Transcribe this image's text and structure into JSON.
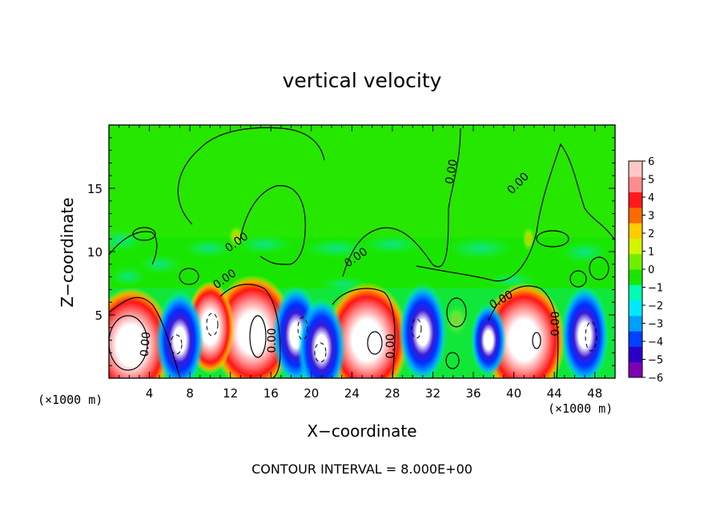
{
  "chart_data": {
    "type": "heatmap",
    "title": "vertical velocity",
    "xlabel": "X−coordinate",
    "ylabel": "Z−coordinate",
    "x_unit_label": "(×1000 m)",
    "x_ticks": [
      "4",
      "8",
      "12",
      "16",
      "20",
      "24",
      "28",
      "32",
      "36",
      "40",
      "44",
      "48"
    ],
    "y_ticks": [
      "5",
      "10",
      "15"
    ],
    "xlim": [
      0,
      50
    ],
    "ylim": [
      0,
      20
    ],
    "colorbar": {
      "ticks": [
        "6",
        "5",
        "4",
        "3",
        "2",
        "1",
        "0",
        "−1",
        "−2",
        "−3",
        "−4",
        "−5",
        "−6"
      ],
      "range": [
        -6,
        6
      ],
      "colors": [
        "#7f00b2",
        "#2a00c8",
        "#0040ff",
        "#00a0ff",
        "#00e8ff",
        "#00ffb4",
        "#19e600",
        "#6ef000",
        "#d2f500",
        "#ffcc00",
        "#ff6a00",
        "#ff1a1a",
        "#ff8c8c",
        "#ffc8c8"
      ]
    },
    "contour_labels": [
      "0.00",
      "0.00",
      "0.00",
      "0.00",
      "0.00",
      "0.00",
      "0.00",
      "0.00",
      "0.00",
      "0.00"
    ],
    "updrafts": [
      {
        "x": 2.2,
        "z": 2.6,
        "w": 8
      },
      {
        "x": 14.2,
        "z": 3.6,
        "w": 8
      },
      {
        "x": 25.5,
        "z": 3.0,
        "w": 8
      },
      {
        "x": 41.0,
        "z": 3.0,
        "w": 8
      },
      {
        "x": 10.0,
        "z": 4.0,
        "w": 6
      }
    ],
    "downdrafts": [
      {
        "x": 7.0,
        "z": 3.0,
        "w": -8
      },
      {
        "x": 18.5,
        "z": 3.4,
        "w": -8
      },
      {
        "x": 21.0,
        "z": 2.4,
        "w": -8
      },
      {
        "x": 31.0,
        "z": 3.6,
        "w": -8
      },
      {
        "x": 37.5,
        "z": 3.0,
        "w": -6
      },
      {
        "x": 47.0,
        "z": 3.4,
        "w": -8
      }
    ],
    "note": "CONTOUR INTERVAL = 8.000E+00"
  }
}
